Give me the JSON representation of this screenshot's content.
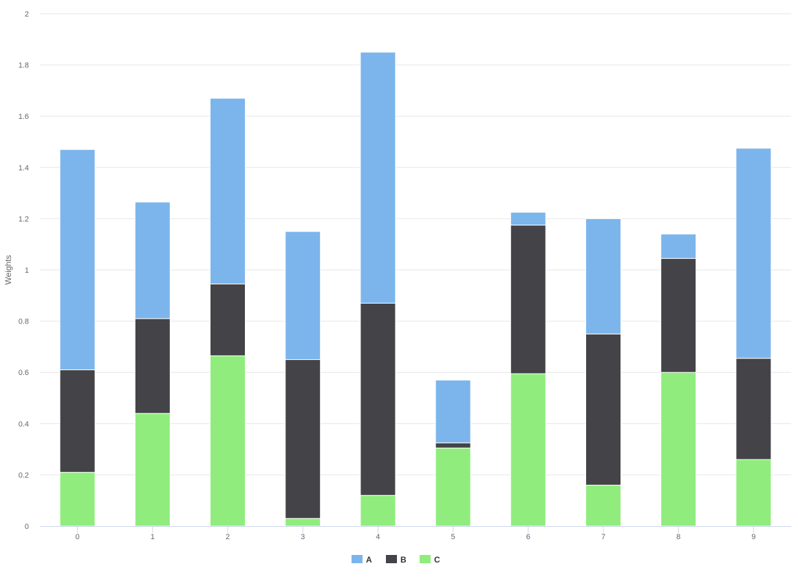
{
  "chart_data": {
    "type": "bar",
    "stacked": true,
    "title": "",
    "xlabel": "",
    "ylabel": "Weights",
    "ylim": [
      0,
      2
    ],
    "yticks": [
      "0",
      "0.2",
      "0.4",
      "0.6",
      "0.8",
      "1",
      "1.2",
      "1.4",
      "1.6",
      "1.8",
      "2"
    ],
    "grid": true,
    "legend_position": "bottom-center",
    "categories": [
      "0",
      "1",
      "2",
      "3",
      "4",
      "5",
      "6",
      "7",
      "8",
      "9"
    ],
    "series": [
      {
        "name": "A",
        "color": "#7cb5ec",
        "values": [
          0.86,
          0.455,
          0.725,
          0.5,
          0.98,
          0.245,
          0.05,
          0.45,
          0.095,
          0.82
        ]
      },
      {
        "name": "B",
        "color": "#434348",
        "values": [
          0.4,
          0.37,
          0.28,
          0.62,
          0.75,
          0.02,
          0.58,
          0.59,
          0.445,
          0.395
        ]
      },
      {
        "name": "C",
        "color": "#90ed7d",
        "values": [
          0.21,
          0.44,
          0.665,
          0.03,
          0.12,
          0.305,
          0.595,
          0.16,
          0.6,
          0.26
        ]
      }
    ]
  }
}
